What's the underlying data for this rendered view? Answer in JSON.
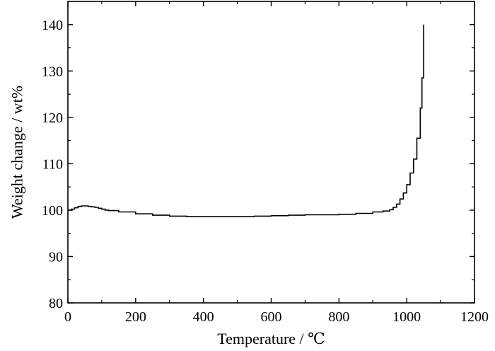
{
  "chart_data": {
    "type": "line",
    "title": "",
    "xlabel": "Temperature / ℃",
    "ylabel": "Weight change / wt%",
    "xlim": [
      0,
      1200
    ],
    "ylim": [
      80,
      145
    ],
    "x_ticks": [
      0,
      200,
      400,
      600,
      800,
      1000,
      1200
    ],
    "y_ticks": [
      80,
      90,
      100,
      110,
      120,
      130,
      140
    ],
    "grid": false,
    "legend": "none",
    "line_color": "#000000",
    "series": [
      {
        "x": [
          0,
          10,
          20,
          30,
          40,
          50,
          60,
          70,
          80,
          90,
          100,
          110,
          120,
          150,
          200,
          250,
          300,
          350,
          400,
          450,
          500,
          550,
          600,
          650,
          700,
          750,
          800,
          850,
          900,
          930,
          950,
          960,
          970,
          980,
          990,
          1000,
          1010,
          1020,
          1030,
          1040,
          1045,
          1050
        ],
        "y": [
          100.0,
          100.2,
          100.5,
          100.8,
          100.9,
          100.9,
          100.8,
          100.7,
          100.6,
          100.4,
          100.2,
          100.0,
          99.9,
          99.6,
          99.2,
          98.9,
          98.7,
          98.6,
          98.6,
          98.6,
          98.6,
          98.7,
          98.8,
          98.9,
          99.0,
          99.0,
          99.1,
          99.3,
          99.6,
          99.8,
          100.1,
          100.6,
          101.3,
          102.4,
          103.7,
          105.5,
          108.0,
          111.0,
          115.5,
          122.0,
          128.5,
          140.0
        ]
      }
    ]
  }
}
